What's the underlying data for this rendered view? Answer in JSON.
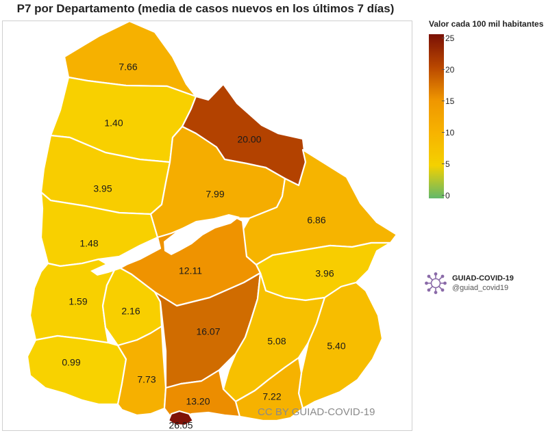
{
  "title": "P7 por Departamento (media de casos nuevos en los últimos 7 días)",
  "legend": {
    "title": "Valor cada 100 mil habitantes",
    "ticks": [
      "25",
      "20",
      "15",
      "10",
      "5",
      "0"
    ],
    "min": 0,
    "max": 25,
    "colors": [
      "#62b86a",
      "#f4d100",
      "#f7b300",
      "#ef9600",
      "#b94700",
      "#7a1005"
    ]
  },
  "departments": [
    {
      "id": "artigas",
      "value": "7.66",
      "color": "#f6b100"
    },
    {
      "id": "salto",
      "value": "1.40",
      "color": "#f8d000"
    },
    {
      "id": "rivera",
      "value": "20.00",
      "color": "#b34200"
    },
    {
      "id": "paysandu",
      "value": "3.95",
      "color": "#f8cd00"
    },
    {
      "id": "tacuarembo",
      "value": "7.99",
      "color": "#f5ad00"
    },
    {
      "id": "cerro-largo",
      "value": "6.86",
      "color": "#f6b400"
    },
    {
      "id": "rio-negro",
      "value": "1.48",
      "color": "#f8d000"
    },
    {
      "id": "durazno",
      "value": "12.11",
      "color": "#ef9300"
    },
    {
      "id": "treinta-y-tres",
      "value": "3.96",
      "color": "#f8cd00"
    },
    {
      "id": "soriano",
      "value": "1.59",
      "color": "#f8d000"
    },
    {
      "id": "flores",
      "value": "2.16",
      "color": "#f8cf00"
    },
    {
      "id": "florida",
      "value": "16.07",
      "color": "#d06c00"
    },
    {
      "id": "lavalleja",
      "value": "5.08",
      "color": "#f7c000"
    },
    {
      "id": "rocha",
      "value": "5.40",
      "color": "#f7bd00"
    },
    {
      "id": "colonia",
      "value": "0.99",
      "color": "#f8d200"
    },
    {
      "id": "san-jose",
      "value": "7.73",
      "color": "#f6b000"
    },
    {
      "id": "canelones",
      "value": "13.20",
      "color": "#ec8d00"
    },
    {
      "id": "maldonado",
      "value": "7.22",
      "color": "#f6b200"
    },
    {
      "id": "montevideo",
      "value": "26.05",
      "color": "#7f1208"
    }
  ],
  "watermark": "CC BY GUIAD-COVID-19",
  "brand": {
    "name": "GUIAD-COVID-19",
    "handle": "@guiad_covid19",
    "logo": "virus-icon"
  }
}
